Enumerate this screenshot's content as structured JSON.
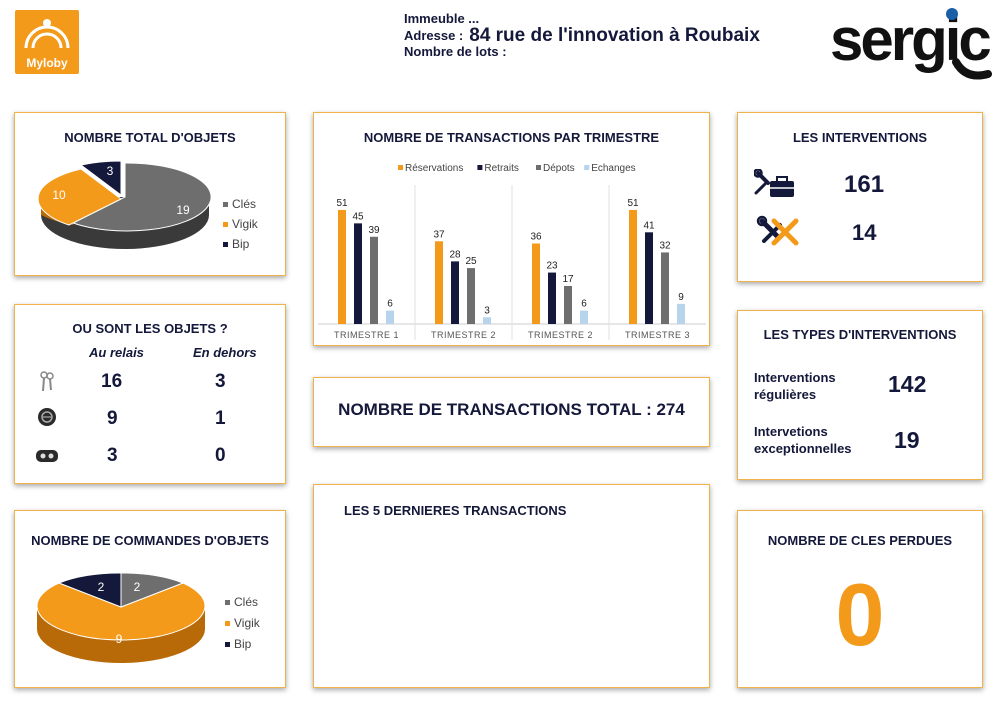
{
  "header": {
    "logo_text": "Myloby",
    "immeuble_label": "Immeuble ...",
    "adresse_label": "Adresse :",
    "adresse_value": "84 rue de l'innovation à Roubaix",
    "lots_label": "Nombre de lots :",
    "brand": "sergic"
  },
  "colors": {
    "cles": "#6e6e6e",
    "vigik": "#f39a1a",
    "bip": "#14183a",
    "echanges": "#b8d4ec",
    "accent": "#f39a1a"
  },
  "total_objets": {
    "title": "NOMBRE TOTAL D'OBJETS",
    "chart_data": {
      "type": "pie",
      "categories": [
        "Clés",
        "Vigik",
        "Bip"
      ],
      "values": [
        19,
        10,
        3
      ]
    },
    "legend": [
      "Clés",
      "Vigik",
      "Bip"
    ]
  },
  "ou_sont": {
    "title": "OU SONT LES OBJETS ?",
    "col_relais": "Au relais",
    "col_dehors": "En dehors",
    "rows": [
      {
        "icon": "keys-icon",
        "relais": "16",
        "dehors": "3"
      },
      {
        "icon": "vigik-badge-icon",
        "relais": "9",
        "dehors": "1"
      },
      {
        "icon": "bip-remote-icon",
        "relais": "3",
        "dehors": "0"
      }
    ]
  },
  "commandes": {
    "title": "NOMBRE DE COMMANDES D'OBJETS",
    "chart_data": {
      "type": "pie",
      "categories": [
        "Clés",
        "Vigik",
        "Bip"
      ],
      "values": [
        2,
        9,
        2
      ]
    },
    "legend": [
      "Clés",
      "Vigik",
      "Bip"
    ]
  },
  "transactions_trimestre": {
    "title": "NOMBRE DE TRANSACTIONS PAR TRIMESTRE",
    "chart_data": {
      "type": "bar",
      "categories": [
        "TRIMESTRE 1",
        "TRIMESTRE 2",
        "TRIMESTRE 2",
        "TRIMESTRE 3"
      ],
      "series": [
        {
          "name": "Réservations",
          "values": [
            51,
            37,
            36,
            51
          ]
        },
        {
          "name": "Retraits",
          "values": [
            45,
            28,
            23,
            41
          ]
        },
        {
          "name": "Dépots",
          "values": [
            39,
            25,
            17,
            32
          ]
        },
        {
          "name": "Echanges",
          "values": [
            6,
            3,
            6,
            9
          ]
        }
      ],
      "ylim": [
        0,
        55
      ]
    }
  },
  "total_transactions": {
    "label": "NOMBRE DE TRANSACTIONS TOTAL : 274"
  },
  "dernieres": {
    "title": "LES 5 DERNIERES TRANSACTIONS"
  },
  "interventions": {
    "title": "LES INTERVENTIONS",
    "total": "161",
    "cancelled": "14"
  },
  "types_interventions": {
    "title": "LES TYPES D'INTERVENTIONS",
    "regulieres_label_1": "Interventions",
    "regulieres_label_2": "régulières",
    "regulieres_value": "142",
    "exceptionnelles_label_1": "Intervetions",
    "exceptionnelles_label_2": "exceptionnelles",
    "exceptionnelles_value": "19"
  },
  "cles_perdues": {
    "title": "NOMBRE DE CLES PERDUES",
    "value": "0"
  }
}
